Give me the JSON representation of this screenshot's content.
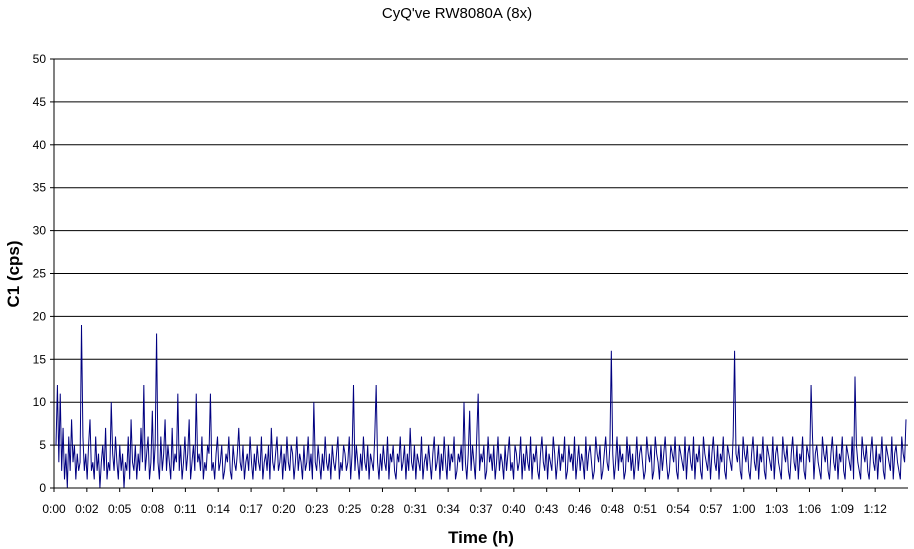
{
  "chart_data": {
    "type": "line",
    "title": "CyQ've RW8080A (8x)",
    "xlabel": "Time (h)",
    "ylabel": "C1 (cps)",
    "ylim": [
      0,
      50
    ],
    "yticks": [
      "0",
      "5",
      "10",
      "15",
      "20",
      "25",
      "30",
      "35",
      "40",
      "45",
      "50"
    ],
    "xticks": [
      "0:00",
      "0:02",
      "0:05",
      "0:08",
      "0:11",
      "0:14",
      "0:17",
      "0:20",
      "0:23",
      "0:25",
      "0:28",
      "0:31",
      "0:34",
      "0:37",
      "0:40",
      "0:43",
      "0:46",
      "0:48",
      "0:51",
      "0:54",
      "0:57",
      "1:00",
      "1:03",
      "1:06",
      "1:09",
      "1:12"
    ],
    "grid": true,
    "series_color": "#000080",
    "series": [
      {
        "values": [
          5,
          12,
          3,
          11,
          2,
          7,
          1,
          4,
          0,
          6,
          2,
          8,
          3,
          5,
          1,
          4,
          2,
          3,
          19,
          6,
          2,
          4,
          1,
          5,
          8,
          2,
          3,
          1,
          6,
          2,
          4,
          0,
          3,
          5,
          2,
          7,
          1,
          3,
          2,
          10,
          4,
          2,
          6,
          3,
          1,
          5,
          2,
          4,
          0,
          3,
          2,
          6,
          1,
          8,
          3,
          2,
          5,
          1,
          4,
          2,
          7,
          3,
          12,
          2,
          4,
          6,
          1,
          3,
          9,
          2,
          5,
          18,
          3,
          1,
          6,
          2,
          4,
          8,
          2,
          5,
          3,
          1,
          7,
          2,
          4,
          3,
          11,
          2,
          5,
          1,
          3,
          6,
          2,
          4,
          8,
          1,
          3,
          5,
          2,
          11,
          3,
          4,
          2,
          6,
          1,
          3,
          2,
          5,
          4,
          11,
          2,
          3,
          1,
          4,
          6,
          2,
          3,
          5,
          1,
          2,
          4,
          3,
          6,
          2,
          1,
          5,
          3,
          2,
          4,
          7,
          3,
          2,
          5,
          1,
          3,
          4,
          2,
          6,
          3,
          1,
          4,
          2,
          5,
          3,
          2,
          6,
          1,
          3,
          4,
          2,
          5,
          1,
          7,
          3,
          2,
          4,
          6,
          2,
          3,
          5,
          1,
          4,
          2,
          6,
          3,
          2,
          5,
          4,
          1,
          3,
          6,
          2,
          4,
          3,
          1,
          5,
          2,
          3,
          6,
          2,
          4,
          1,
          10,
          3,
          2,
          5,
          3,
          1,
          4,
          2,
          6,
          3,
          2,
          4,
          1,
          5,
          3,
          2,
          4,
          6,
          1,
          3,
          2,
          5,
          4,
          2,
          3,
          6,
          1,
          4,
          12,
          2,
          5,
          3,
          1,
          4,
          2,
          6,
          3,
          2,
          5,
          1,
          4,
          3,
          2,
          6,
          12,
          3,
          1,
          4,
          2,
          5,
          3,
          2,
          6,
          1,
          4,
          3,
          5,
          2,
          1,
          4,
          3,
          6,
          2,
          3,
          5,
          1,
          4,
          2,
          7,
          3,
          2,
          5,
          1,
          4,
          3,
          2,
          6,
          1,
          3,
          4,
          2,
          5,
          3,
          1,
          4,
          6,
          2,
          3,
          5,
          1,
          4,
          2,
          6,
          3,
          1,
          5,
          2,
          4,
          3,
          6,
          1,
          2,
          4,
          3,
          5,
          2,
          10,
          3,
          1,
          4,
          9,
          2,
          5,
          3,
          1,
          6,
          11,
          2,
          4,
          3,
          5,
          1,
          2,
          6,
          3,
          4,
          2,
          5,
          1,
          3,
          6,
          2,
          4,
          3,
          1,
          5,
          2,
          4,
          6,
          2,
          3,
          1,
          5,
          4,
          2,
          3,
          6,
          1,
          4,
          2,
          5,
          3,
          2,
          6,
          1,
          4,
          3,
          5,
          2,
          1,
          4,
          6,
          3,
          2,
          5,
          1,
          4,
          3,
          2,
          6,
          4,
          1,
          3,
          5,
          2,
          4,
          3,
          6,
          1,
          2,
          5,
          3,
          4,
          2,
          6,
          1,
          3,
          5,
          2,
          4,
          3,
          1,
          6,
          2,
          4,
          5,
          3,
          1,
          2,
          6,
          4,
          3,
          5,
          1,
          2,
          4,
          6,
          3,
          2,
          5,
          16,
          4,
          1,
          3,
          6,
          2,
          5,
          3,
          4,
          1,
          2,
          6,
          3,
          5,
          2,
          4,
          1,
          3,
          6,
          2,
          4,
          5,
          3,
          1,
          2,
          6,
          4,
          3,
          5,
          1,
          2,
          6,
          4,
          3,
          1,
          5,
          2,
          4,
          6,
          3,
          1,
          2,
          5,
          4,
          3,
          6,
          2,
          1,
          5,
          4,
          3,
          2,
          6,
          1,
          4,
          5,
          3,
          2,
          6,
          1,
          4,
          3,
          5,
          2,
          1,
          6,
          4,
          3,
          2,
          5,
          1,
          4,
          6,
          3,
          2,
          5,
          1,
          4,
          3,
          6,
          2,
          1,
          5,
          4,
          3,
          2,
          6,
          16,
          4,
          3,
          5,
          2,
          1,
          6,
          4,
          3,
          5,
          2,
          1,
          4,
          6,
          3,
          2,
          5,
          1,
          4,
          3,
          6,
          2,
          1,
          5,
          4,
          3,
          2,
          6,
          1,
          4,
          5,
          3,
          2,
          1,
          6,
          4,
          3,
          5,
          2,
          1,
          4,
          6,
          3,
          2,
          5,
          1,
          4,
          3,
          6,
          2,
          1,
          5,
          4,
          3,
          12,
          6,
          1,
          4,
          5,
          3,
          2,
          1,
          6,
          4,
          3,
          5,
          2,
          1,
          4,
          6,
          3,
          2,
          5,
          1,
          4,
          3,
          6,
          2,
          1,
          5,
          4,
          3,
          2,
          6,
          1,
          13,
          5,
          3,
          2,
          1,
          6,
          4,
          3,
          5,
          2,
          1,
          4,
          6,
          3,
          2,
          5,
          1,
          4,
          3,
          6,
          2,
          1,
          5,
          4,
          3,
          2,
          6,
          1,
          4,
          5,
          3,
          2,
          1,
          6,
          4,
          3,
          8
        ]
      }
    ]
  }
}
